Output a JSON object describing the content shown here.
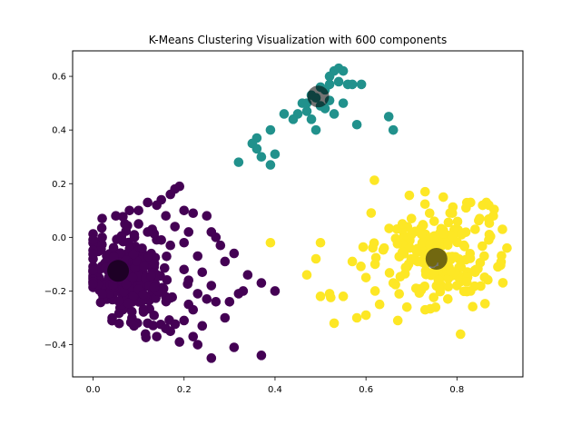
{
  "chart_data": {
    "type": "scatter",
    "title": "K-Means Clustering Visualization with 600 components",
    "xlabel": "",
    "ylabel": "",
    "xlim": [
      -0.045,
      0.945
    ],
    "ylim": [
      -0.52,
      0.695
    ],
    "xticks": [
      "0.0",
      "0.2",
      "0.4",
      "0.6",
      "0.8"
    ],
    "yticks": [
      "−0.4",
      "−0.2",
      "0.0",
      "0.2",
      "0.4",
      "0.6"
    ],
    "grid": false,
    "legend": "none",
    "clusters": [
      {
        "color": "#440154",
        "center": [
          0.055,
          -0.125
        ],
        "points": [
          [
            0.19,
            0.19
          ],
          [
            0.18,
            0.18
          ],
          [
            0.17,
            0.16
          ],
          [
            0.15,
            0.14
          ],
          [
            0.12,
            0.13
          ],
          [
            0.1,
            0.1
          ],
          [
            0.08,
            0.1
          ],
          [
            0.05,
            0.08
          ],
          [
            0.02,
            0.07
          ],
          [
            0.14,
            0.12
          ],
          [
            0.16,
            0.08
          ],
          [
            0.2,
            0.1
          ],
          [
            0.22,
            0.09
          ],
          [
            0.25,
            0.08
          ],
          [
            0.07,
            0.05
          ],
          [
            0.13,
            0.03
          ],
          [
            0.1,
            0.05
          ],
          [
            0.18,
            0.04
          ],
          [
            0.21,
            0.02
          ],
          [
            0.26,
            0.02
          ],
          [
            0.27,
            0.0
          ],
          [
            0.28,
            -0.03
          ],
          [
            0.31,
            -0.06
          ],
          [
            0.29,
            -0.09
          ],
          [
            0.34,
            -0.14
          ],
          [
            0.33,
            -0.2
          ],
          [
            0.37,
            -0.17
          ],
          [
            0.4,
            -0.2
          ],
          [
            0.32,
            -0.21
          ],
          [
            0.3,
            -0.24
          ],
          [
            0.29,
            -0.3
          ],
          [
            0.25,
            -0.23
          ],
          [
            0.27,
            -0.24
          ],
          [
            0.22,
            -0.27
          ],
          [
            0.24,
            -0.33
          ],
          [
            0.23,
            -0.4
          ],
          [
            0.26,
            -0.45
          ],
          [
            0.31,
            -0.41
          ],
          [
            0.37,
            -0.44
          ],
          [
            0.19,
            -0.39
          ],
          [
            0.22,
            -0.37
          ],
          [
            0.17,
            -0.35
          ],
          [
            0.16,
            -0.34
          ],
          [
            0.14,
            -0.37
          ],
          [
            0.09,
            -0.33
          ],
          [
            0.12,
            -0.32
          ],
          [
            0.2,
            -0.31
          ],
          [
            0.21,
            -0.25
          ],
          [
            0.23,
            -0.21
          ],
          [
            0.26,
            -0.18
          ],
          [
            0.21,
            -0.16
          ],
          [
            0.24,
            -0.13
          ],
          [
            0.2,
            -0.12
          ],
          [
            0.23,
            -0.07
          ],
          [
            0.17,
            -0.03
          ],
          [
            0.2,
            -0.02
          ],
          [
            0.15,
            -0.01
          ],
          [
            0.12,
            0.02
          ],
          [
            0.02,
            0.0
          ]
        ],
        "dense_blob": {
          "center": [
            0.07,
            -0.12
          ],
          "spread": [
            0.045,
            0.075
          ],
          "count": 320
        }
      },
      {
        "color": "#21918c",
        "center": [
          0.495,
          0.525
        ],
        "points": [
          [
            0.53,
            0.62
          ],
          [
            0.54,
            0.63
          ],
          [
            0.55,
            0.62
          ],
          [
            0.52,
            0.6
          ],
          [
            0.54,
            0.58
          ],
          [
            0.56,
            0.57
          ],
          [
            0.5,
            0.56
          ],
          [
            0.48,
            0.53
          ],
          [
            0.46,
            0.5
          ],
          [
            0.47,
            0.47
          ],
          [
            0.45,
            0.46
          ],
          [
            0.48,
            0.44
          ],
          [
            0.51,
            0.48
          ],
          [
            0.53,
            0.46
          ],
          [
            0.55,
            0.5
          ],
          [
            0.57,
            0.57
          ],
          [
            0.59,
            0.57
          ],
          [
            0.58,
            0.42
          ],
          [
            0.65,
            0.45
          ],
          [
            0.66,
            0.4
          ],
          [
            0.49,
            0.4
          ],
          [
            0.42,
            0.46
          ],
          [
            0.39,
            0.4
          ],
          [
            0.36,
            0.37
          ],
          [
            0.35,
            0.35
          ],
          [
            0.37,
            0.3
          ],
          [
            0.4,
            0.31
          ],
          [
            0.39,
            0.27
          ],
          [
            0.32,
            0.28
          ],
          [
            0.52,
            0.51
          ],
          [
            0.5,
            0.49
          ],
          [
            0.51,
            0.55
          ],
          [
            0.49,
            0.52
          ],
          [
            0.47,
            0.5
          ],
          [
            0.52,
            0.57
          ],
          [
            0.44,
            0.44
          ],
          [
            0.36,
            0.33
          ]
        ]
      },
      {
        "color": "#fde725",
        "center": [
          0.755,
          -0.08
        ],
        "points": [
          [
            0.73,
            0.17
          ],
          [
            0.77,
            0.15
          ],
          [
            0.83,
            0.13
          ],
          [
            0.87,
            0.12
          ],
          [
            0.9,
            0.03
          ],
          [
            0.91,
            -0.04
          ],
          [
            0.89,
            -0.11
          ],
          [
            0.83,
            -0.2
          ],
          [
            0.78,
            -0.23
          ],
          [
            0.73,
            -0.27
          ],
          [
            0.69,
            -0.26
          ],
          [
            0.67,
            -0.31
          ],
          [
            0.63,
            -0.25
          ],
          [
            0.6,
            -0.29
          ],
          [
            0.58,
            -0.3
          ],
          [
            0.53,
            -0.32
          ],
          [
            0.55,
            -0.22
          ],
          [
            0.52,
            -0.21
          ],
          [
            0.5,
            -0.22
          ],
          [
            0.49,
            -0.08
          ],
          [
            0.47,
            -0.14
          ],
          [
            0.5,
            -0.02
          ],
          [
            0.39,
            -0.02
          ],
          [
            0.57,
            -0.09
          ],
          [
            0.6,
            -0.15
          ],
          [
            0.62,
            -0.1
          ],
          [
            0.64,
            -0.04
          ],
          [
            0.68,
            0.05
          ],
          [
            0.7,
            0.01
          ],
          [
            0.74,
            0.09
          ],
          [
            0.79,
            0.09
          ],
          [
            0.82,
            0.11
          ],
          [
            0.85,
            0.07
          ],
          [
            0.88,
            0.08
          ],
          [
            0.87,
            -0.01
          ],
          [
            0.86,
            -0.07
          ],
          [
            0.84,
            -0.13
          ],
          [
            0.8,
            -0.18
          ],
          [
            0.76,
            -0.16
          ],
          [
            0.71,
            -0.19
          ],
          [
            0.66,
            -0.17
          ],
          [
            0.62,
            -0.2
          ],
          [
            0.7,
            0.07
          ],
          [
            0.75,
            0.06
          ],
          [
            0.81,
            0.01
          ],
          [
            0.84,
            0.03
          ]
        ],
        "dense_blob": {
          "center": [
            0.75,
            -0.06
          ],
          "spread": [
            0.075,
            0.09
          ],
          "count": 175
        }
      }
    ]
  }
}
